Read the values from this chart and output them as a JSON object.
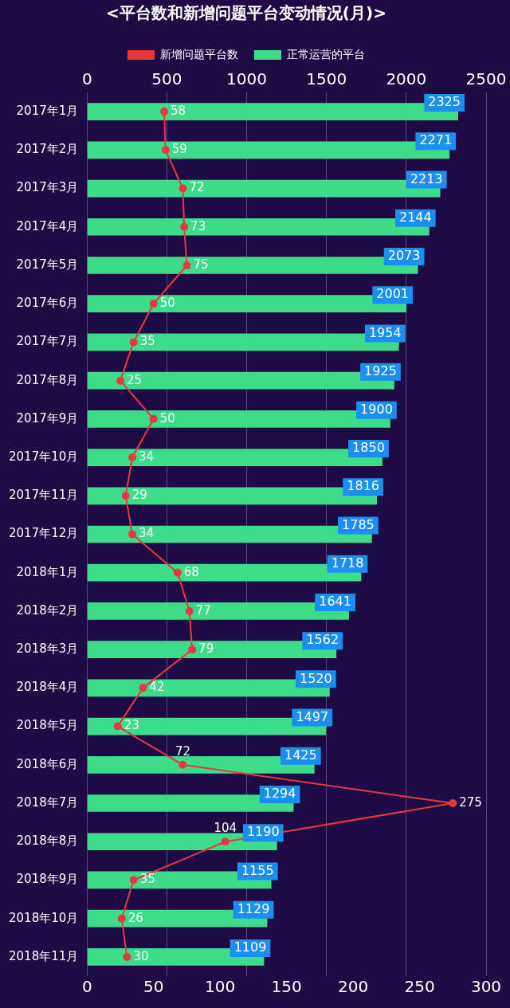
{
  "chart_data": {
    "type": "bar",
    "orientation": "horizontal",
    "title": "<平台数和新增问题平台变动情况(月)>",
    "categories": [
      "2017年1月",
      "2017年2月",
      "2017年3月",
      "2017年4月",
      "2017年5月",
      "2017年6月",
      "2017年7月",
      "2017年8月",
      "2017年9月",
      "2017年10月",
      "2017年11月",
      "2017年12月",
      "2018年1月",
      "2018年2月",
      "2018年3月",
      "2018年4月",
      "2018年5月",
      "2018年6月",
      "2018年7月",
      "2018年8月",
      "2018年9月",
      "2018年10月",
      "2018年11月"
    ],
    "series": [
      {
        "name": "新增问题平台数",
        "type": "line",
        "color": "#e8383d",
        "values": [
          58,
          59,
          72,
          73,
          75,
          50,
          35,
          25,
          50,
          34,
          29,
          34,
          68,
          77,
          79,
          42,
          23,
          72,
          275,
          104,
          35,
          26,
          30
        ]
      },
      {
        "name": "正常运营的平台",
        "axis": "x2",
        "color": "#3ddc8a",
        "values": [
          2325,
          2271,
          2213,
          2144,
          2073,
          2001,
          1954,
          1925,
          1900,
          1850,
          1816,
          1785,
          1718,
          1641,
          1562,
          1520,
          1497,
          1425,
          1294,
          1190,
          1155,
          1129,
          1109
        ]
      }
    ],
    "xlim": [
      0,
      300
    ],
    "xticks": [
      0,
      50,
      100,
      150,
      200,
      250,
      300
    ],
    "x2lim": [
      0,
      2500
    ],
    "x2ticks": [
      0,
      500,
      1000,
      1500,
      2000,
      2500
    ],
    "data_labels": true,
    "legend": "top",
    "grid": "x2",
    "marker": "circle",
    "line_style": "solid"
  }
}
